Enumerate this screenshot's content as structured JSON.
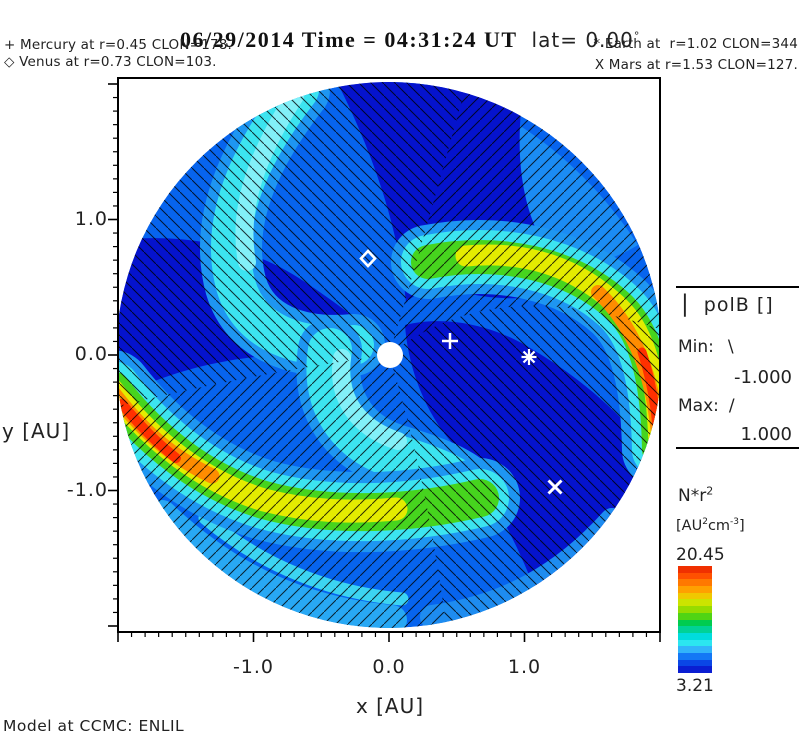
{
  "header": {
    "title_main": "06/29/2014 Time = 04:31:24 UT",
    "title_lat": "lat= 0.00",
    "title_degree": "°",
    "planets": {
      "mercury": "+ Mercury at r=0.45 CLON=178.",
      "venus": "◇ Venus at r=0.73 CLON=103.",
      "earth": "* Earth at  r=1.02 CLON=344",
      "mars": "X Mars at r=1.53 CLON=127."
    }
  },
  "axes": {
    "x_label": "x [AU]",
    "y_label": "y [AU]"
  },
  "legend": {
    "polb_bar": "|",
    "polb_label": "polB []",
    "min_label": "Min:",
    "min_glyph": "\\",
    "min_value": "-1.000",
    "max_label": "Max:",
    "max_glyph": "/",
    "max_value": "1.000"
  },
  "colorbar": {
    "quantity": "N*r",
    "quantity_sup": "2",
    "units_pre": "[AU",
    "units_sup1": "2",
    "units_mid": "cm",
    "units_sup2": "-3",
    "units_post": "]",
    "max_label": "20.45",
    "min_label": "3.21"
  },
  "footer": {
    "model": "Model at CCMC: ENLIL"
  },
  "chart_data": {
    "type": "heatmap",
    "subtype": "ENLIL heliospheric density, polar cut at lat=0",
    "title": "06/29/2014 Time = 04:31:24 UT lat= 0.00°",
    "xlabel": "x [AU]",
    "ylabel": "y [AU]",
    "xlim": [
      -2.0,
      2.0
    ],
    "ylim": [
      -2.0,
      2.0
    ],
    "x_tick_vals": [
      -1.0,
      0.0,
      1.0
    ],
    "x_tick_labels": [
      "-1.0",
      "0.0",
      "1.0"
    ],
    "y_tick_vals": [
      1.0,
      0.0,
      -1.0
    ],
    "y_tick_labels": [
      "1.0",
      "0.0",
      "-1.0"
    ],
    "minor_tick_step": 0.1,
    "grid": false,
    "quantity": {
      "label": "N*r^2",
      "units": "AU^2 cm^-3",
      "min": 3.21,
      "max": 20.45
    },
    "polarity": {
      "label": "polB []",
      "min": -1.0,
      "max": 1.0,
      "negative_hatch": "\\",
      "positive_hatch": "/"
    },
    "colorbar_colors": [
      "#f03000",
      "#ff5000",
      "#ff7800",
      "#ffa000",
      "#f0c800",
      "#cce400",
      "#96dc00",
      "#50d414",
      "#00cc50",
      "#00d296",
      "#00dcdc",
      "#2ce6f0",
      "#32b4fa",
      "#1478f5",
      "#0a46e6",
      "#0a1ed2"
    ],
    "planets": [
      {
        "name": "Mercury",
        "symbol": "+",
        "r": 0.45,
        "clon": 178
      },
      {
        "name": "Venus",
        "symbol": "◇",
        "r": 0.73,
        "clon": 103
      },
      {
        "name": "Earth",
        "symbol": "*",
        "r": 1.02,
        "clon": 344
      },
      {
        "name": "Mars",
        "symbol": "X",
        "r": 1.53,
        "clon": 127
      }
    ],
    "notes": "Blue disk with two bright spiral density arms (lower-left and right, red max ~20.45), cyan mid-density spiral bands, black hatching shows magnetic polarity sectors, white Sun at center."
  }
}
